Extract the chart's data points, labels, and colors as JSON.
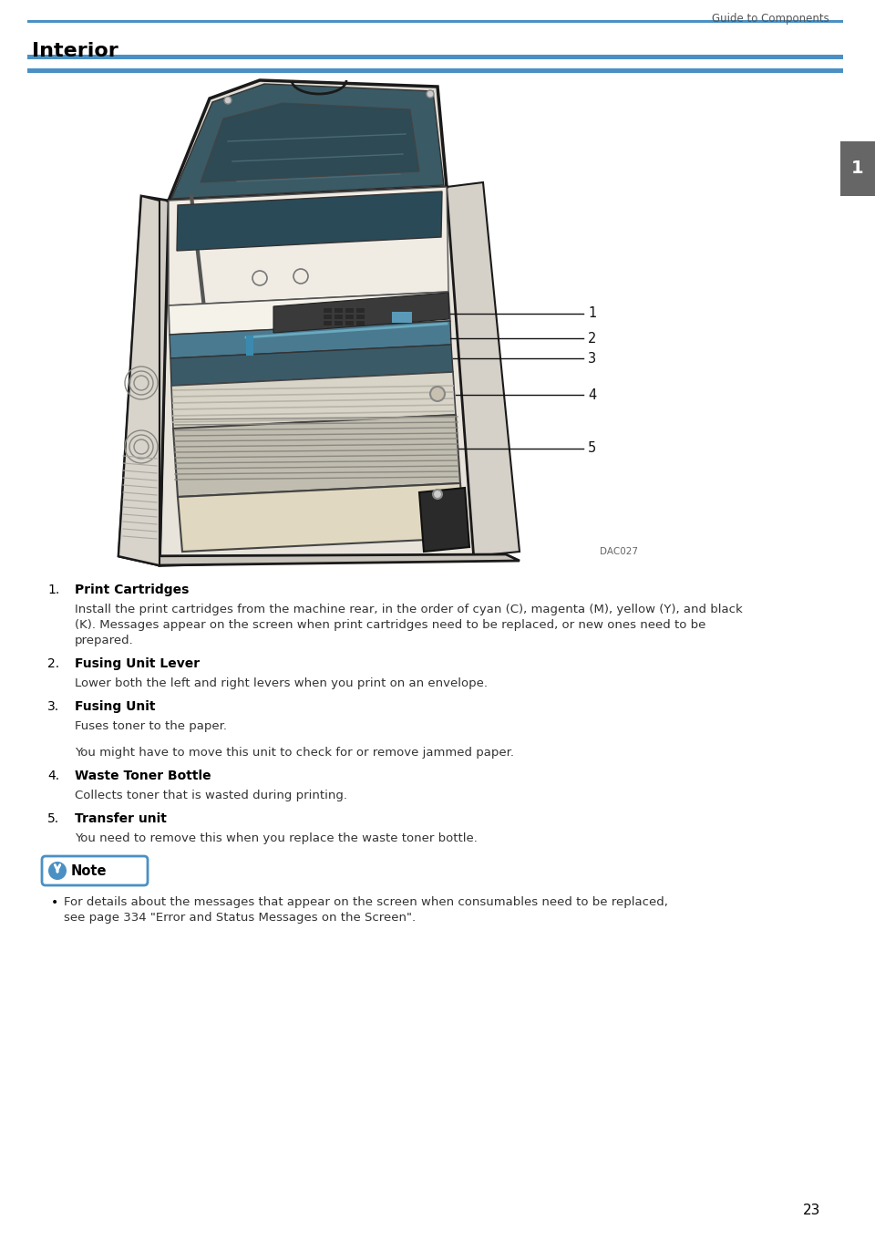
{
  "bg_color": "#ffffff",
  "header_text": "Guide to Components",
  "blue_color": "#4a90c4",
  "tab_gray": "#666666",
  "section_title": "Interior",
  "tab_text": "1",
  "dac_text": "DAC027",
  "items": [
    {
      "num": "1.",
      "title": "Print Cartridges",
      "lines": [
        "Install the print cartridges from the machine rear, in the order of cyan (C), magenta (M), yellow (Y), and black",
        "(K). Messages appear on the screen when print cartridges need to be replaced, or new ones need to be",
        "prepared."
      ]
    },
    {
      "num": "2.",
      "title": "Fusing Unit Lever",
      "lines": [
        "Lower both the left and right levers when you print on an envelope."
      ]
    },
    {
      "num": "3.",
      "title": "Fusing Unit",
      "lines": [
        "Fuses toner to the paper.",
        "",
        "You might have to move this unit to check for or remove jammed paper."
      ]
    },
    {
      "num": "4.",
      "title": "Waste Toner Bottle",
      "lines": [
        "Collects toner that is wasted during printing."
      ]
    },
    {
      "num": "5.",
      "title": "Transfer unit",
      "lines": [
        "You need to remove this when you replace the waste toner bottle."
      ]
    }
  ],
  "note_text": "Note",
  "note_bullet_lines": [
    "For details about the messages that appear on the screen when consumables need to be replaced,",
    "see page 334 \"Error and Status Messages on the Screen\"."
  ],
  "page_number": "23",
  "callout_numbers": [
    "1",
    "2",
    "3",
    "4",
    "5"
  ]
}
